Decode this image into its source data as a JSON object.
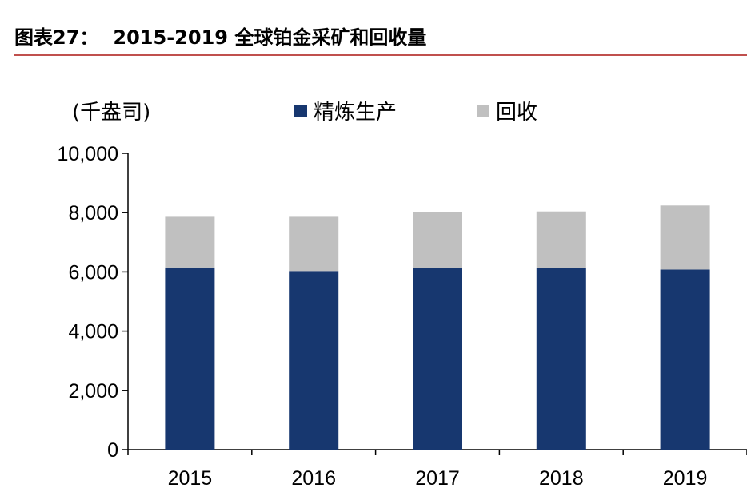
{
  "header": {
    "figure_number": "图表27：",
    "title": "2015-2019 全球铂金采矿和回收量"
  },
  "colors": {
    "accent_rule": "#c0504d",
    "series_refined": "#17376f",
    "series_recycle": "#c0c0c0"
  },
  "chart_data": {
    "type": "bar",
    "stacked": true,
    "categories": [
      "2015",
      "2016",
      "2017",
      "2018",
      "2019"
    ],
    "series": [
      {
        "name": "精炼生产",
        "values": [
          6150,
          6030,
          6120,
          6120,
          6080
        ]
      },
      {
        "name": "回收",
        "values": [
          1710,
          1830,
          1890,
          1920,
          2160
        ]
      }
    ],
    "unit_label": "(千盎司)",
    "ylim": [
      0,
      10000
    ],
    "yticks": [
      0,
      2000,
      4000,
      6000,
      8000,
      10000
    ],
    "ytick_labels": [
      "0",
      "2,000",
      "4,000",
      "6,000",
      "8,000",
      "10,000"
    ],
    "grid": false,
    "legend_position": "top-center"
  }
}
